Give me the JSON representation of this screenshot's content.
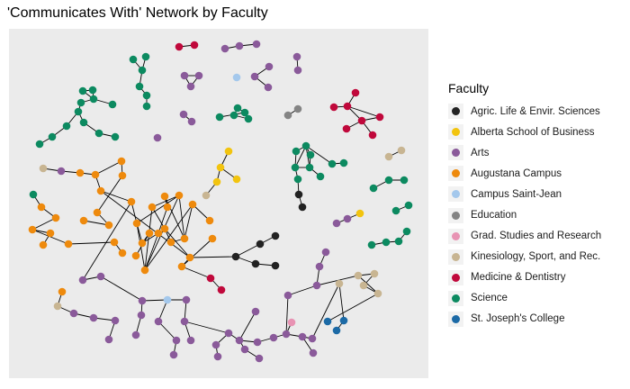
{
  "title": "'Communicates With' Network by Faculty",
  "legend": {
    "title": "Faculty",
    "items": [
      {
        "label": "Agric. Life & Envir. Sciences",
        "color": "#222222"
      },
      {
        "label": "Alberta School of Business",
        "color": "#f2c40f"
      },
      {
        "label": "Arts",
        "color": "#8a5a9a"
      },
      {
        "label": "Augustana Campus",
        "color": "#ee8a0d"
      },
      {
        "label": "Campus Saint-Jean",
        "color": "#a4c8ec"
      },
      {
        "label": "Education",
        "color": "#848484"
      },
      {
        "label": "Grad. Studies and Research",
        "color": "#e893b3"
      },
      {
        "label": "Kinesiology, Sport, and Rec.",
        "color": "#c8b592"
      },
      {
        "label": "Medicine & Dentistry",
        "color": "#c0083b"
      },
      {
        "label": "Science",
        "color": "#0c8a60"
      },
      {
        "label": "St. Joseph's College",
        "color": "#1c6aa6"
      }
    ]
  }
}
